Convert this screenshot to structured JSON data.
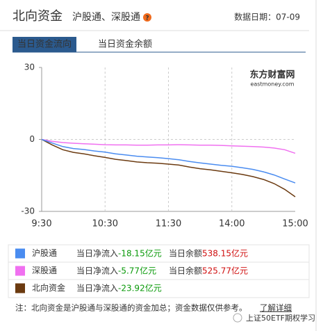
{
  "header": {
    "title": "北向资金",
    "subtitle": "沪股通、深股通",
    "date": "数据日期：07-09"
  },
  "tabs": [
    "当日资金流向",
    "当日资金余额"
  ],
  "chart_data": {
    "type": "line",
    "watermark": "东方财富网",
    "watermark_sub": "eastmoney.com",
    "categories": [
      "9:30",
      null,
      null,
      null,
      null,
      null,
      "10:30",
      null,
      null,
      null,
      null,
      null,
      "11:30",
      null,
      null,
      null,
      null,
      null,
      "14:00",
      null,
      null,
      null,
      null,
      null,
      "15:00"
    ],
    "ylim": [
      -30,
      30
    ],
    "yticks": [
      30,
      0,
      -30
    ],
    "grid": true,
    "inflow_label": "当日净流入",
    "balance_label": "当日余额",
    "series": [
      {
        "name": "沪股通",
        "color": "#4a8cf0",
        "net_inflow": "-18.15亿元",
        "balance": "538.15亿元",
        "values": [
          0,
          -1.5,
          -3.0,
          -3.8,
          -4.2,
          -4.8,
          -5.3,
          -6.0,
          -6.5,
          -7.0,
          -7.3,
          -7.6,
          -8.0,
          -8.5,
          -9.2,
          -9.8,
          -10.3,
          -10.8,
          -11.2,
          -11.8,
          -12.5,
          -13.5,
          -14.8,
          -16.5,
          -18.15
        ]
      },
      {
        "name": "深股通",
        "color": "#f070f0",
        "net_inflow": "-5.77亿元",
        "balance": "525.77亿元",
        "values": [
          0,
          -0.8,
          -1.3,
          -1.6,
          -1.8,
          -2.0,
          -2.2,
          -2.3,
          -2.3,
          -2.4,
          -2.4,
          -2.3,
          -2.3,
          -2.2,
          -2.3,
          -2.4,
          -2.4,
          -2.5,
          -2.7,
          -2.8,
          -3.0,
          -3.2,
          -3.6,
          -4.3,
          -5.77
        ]
      },
      {
        "name": "北向资金",
        "color": "#6b3a10",
        "net_inflow": "-23.92亿元",
        "values": [
          0,
          -2.3,
          -4.3,
          -5.4,
          -6.0,
          -6.8,
          -7.5,
          -8.3,
          -8.8,
          -9.4,
          -9.7,
          -9.9,
          -10.3,
          -10.7,
          -11.5,
          -12.2,
          -12.7,
          -13.3,
          -13.9,
          -14.6,
          -15.5,
          -16.7,
          -18.4,
          -20.8,
          -23.92
        ]
      }
    ]
  },
  "note": "注：北向资金是沪股通与深股通的资金加总；资金数据仅供参考。",
  "link": "了解详细",
  "footer_watermark": "上证50ETF期权学习"
}
